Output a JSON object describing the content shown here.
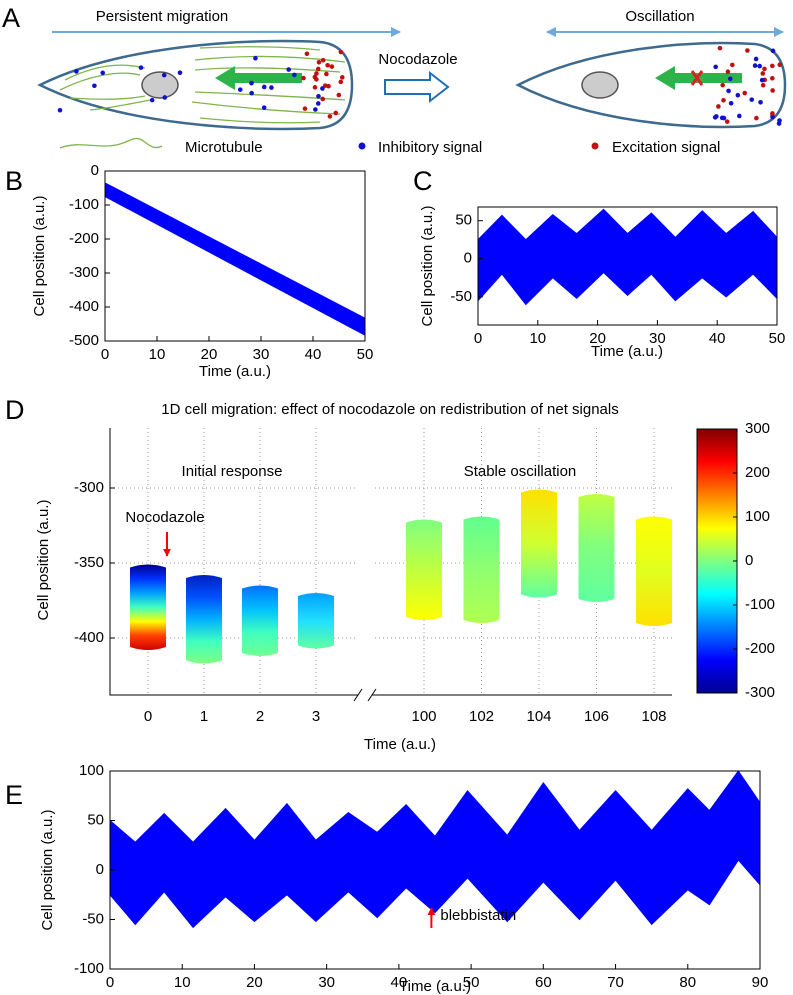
{
  "figure": {
    "panel": "A",
    "left_label": "Persistent migration",
    "middle_label": "Nocodazole",
    "right_label": "Oscillation",
    "legend": [
      "Microtubule",
      "Inhibitory signal",
      "Excitation signal"
    ]
  },
  "chart_data": [
    {
      "panel": "B",
      "type": "band",
      "color": "#0000ff",
      "x": [
        0,
        50
      ],
      "upper": [
        -35,
        -433
      ],
      "lower": [
        -75,
        -483
      ],
      "xlim": [
        0,
        50
      ],
      "ylim": [
        -500,
        0
      ],
      "xticks": [
        0,
        10,
        20,
        30,
        40,
        50
      ],
      "yticks": [
        -500,
        -400,
        -300,
        -200,
        -100,
        0
      ],
      "xlabel": "Time (a.u.)",
      "ylabel": "Cell position (a.u.)"
    },
    {
      "panel": "C",
      "type": "band",
      "color": "#0000ff",
      "x": [
        0,
        4,
        8,
        12.5,
        16.5,
        21,
        25,
        29,
        33,
        37.5,
        41.5,
        46,
        50
      ],
      "upper": [
        25,
        57,
        25,
        58,
        33,
        65,
        33,
        60,
        28,
        63,
        33,
        62,
        28
      ],
      "lower": [
        -55,
        -20,
        -60,
        -25,
        -52,
        -18,
        -48,
        -20,
        -55,
        -25,
        -50,
        -20,
        -52
      ],
      "xlim": [
        0,
        50
      ],
      "ylim": [
        -87,
        68
      ],
      "xticks": [
        0,
        10,
        20,
        30,
        40,
        50
      ],
      "yticks": [
        -50,
        0,
        50
      ],
      "xlabel": "Time (a.u.)",
      "ylabel": "Cell position (a.u.)"
    },
    {
      "panel": "D",
      "type": "range_bar",
      "title": "1D cell migration: effect of nocodazole on redistribution of net signals",
      "categories": [
        "0",
        "1",
        "2",
        "3",
        "100",
        "102",
        "104",
        "106",
        "108"
      ],
      "high": [
        -351,
        -358,
        -365,
        -370,
        -321,
        -319,
        -301,
        -304,
        -319
      ],
      "low": [
        -408,
        -417,
        -412,
        -407,
        -388,
        -390,
        -373,
        -376,
        -392
      ],
      "gradients": [
        [
          "#000090",
          "#0030ff",
          "#00a0ff",
          "#40ffc0",
          "#ffff00",
          "#ff4000",
          "#d00000"
        ],
        [
          "#0020c0",
          "#0050ff",
          "#00b0ff",
          "#40ffc0",
          "#80ff80"
        ],
        [
          "#0070ff",
          "#00c0ff",
          "#40ffc0",
          "#70ff90"
        ],
        [
          "#00a0ff",
          "#20e0ff",
          "#60ffa0"
        ],
        [
          "#80ff80",
          "#c0ff40",
          "#ffff00"
        ],
        [
          "#60ff90",
          "#90ff70",
          "#b0ff50"
        ],
        [
          "#ffe000",
          "#d0ff30",
          "#60ffa0"
        ],
        [
          "#c0ff40",
          "#80ff80",
          "#60ffa0"
        ],
        [
          "#ffff00",
          "#e0ff20",
          "#ffe000"
        ]
      ],
      "ylim": [
        -438,
        -260
      ],
      "yticks": [
        -400,
        -350,
        -300
      ],
      "grid": true,
      "group_labels": [
        "Initial response",
        "Stable oscillation"
      ],
      "annotation": {
        "text": "Nocodazole",
        "color": "#ff0000"
      },
      "colorbar": {
        "lim": [
          -300,
          300
        ],
        "ticks": [
          -300,
          -200,
          -100,
          0,
          100,
          200,
          300
        ],
        "colors": [
          "#00008f",
          "#0000ff",
          "#0080ff",
          "#00ffff",
          "#80ff80",
          "#ffff00",
          "#ff8000",
          "#ff0000",
          "#800000"
        ]
      },
      "xlabel": "Time (a.u.)",
      "ylabel": "Cell position (a.u.)"
    },
    {
      "panel": "E",
      "type": "band",
      "color": "#0000ff",
      "x": [
        0,
        3.5,
        7.5,
        11.5,
        16,
        20,
        24.5,
        28.5,
        33,
        37,
        41,
        45,
        49.5,
        55,
        60,
        65,
        70,
        75,
        80,
        83,
        87,
        90
      ],
      "upper": [
        50,
        28,
        57,
        28,
        62,
        30,
        67,
        30,
        58,
        38,
        66,
        34,
        80,
        35,
        88,
        40,
        80,
        40,
        82,
        60,
        100,
        68
      ],
      "lower": [
        -25,
        -55,
        -22,
        -58,
        -27,
        -52,
        -25,
        -52,
        -22,
        -48,
        -18,
        -43,
        -8,
        -52,
        -12,
        -50,
        -10,
        -55,
        -20,
        -35,
        10,
        -15
      ],
      "xlim": [
        0,
        90
      ],
      "ylim": [
        -100,
        100
      ],
      "xticks": [
        0,
        10,
        20,
        30,
        40,
        50,
        60,
        70,
        80,
        90
      ],
      "yticks": [
        -100,
        -50,
        0,
        50,
        100
      ],
      "annotation": {
        "text": "blebbistatin",
        "color": "#ff0000"
      },
      "xlabel": "Time (a.u.)",
      "ylabel": "Cell position (a.u.)"
    }
  ]
}
